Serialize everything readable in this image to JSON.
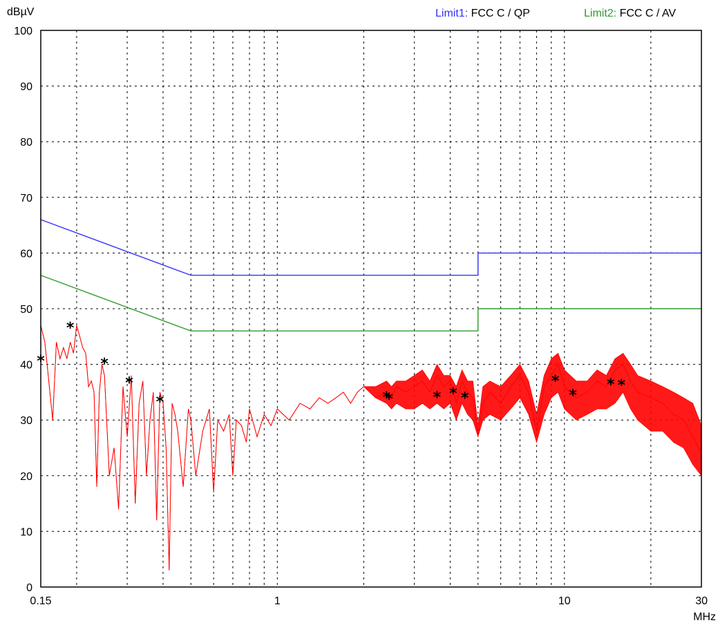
{
  "chart_data": {
    "type": "line",
    "title": "",
    "xlabel": "MHz",
    "ylabel": "dBµV",
    "x_scale": "log",
    "xlim": [
      0.15,
      30
    ],
    "ylim": [
      0,
      100
    ],
    "grid": true,
    "legend_position": "top-right",
    "x_ticks": [
      {
        "value": 0.15,
        "label": "0.15"
      },
      {
        "value": 1,
        "label": "1"
      },
      {
        "value": 10,
        "label": "10"
      },
      {
        "value": 30,
        "label": "30"
      }
    ],
    "x_gridlines": [
      0.2,
      0.3,
      0.4,
      0.5,
      0.6,
      0.7,
      0.8,
      0.9,
      1,
      2,
      3,
      4,
      5,
      6,
      7,
      8,
      9,
      10,
      20
    ],
    "y_ticks": [
      0,
      10,
      20,
      30,
      40,
      50,
      60,
      70,
      80,
      90,
      100
    ],
    "legend": [
      {
        "prefix": "Limit1: ",
        "text": "FCC C / QP",
        "color": "#3030ff"
      },
      {
        "prefix": "Limit2: ",
        "text": "FCC C / AV",
        "color": "#2e9b2e"
      }
    ],
    "series": [
      {
        "name": "Limit1: FCC C / QP",
        "color": "#3030ff",
        "x": [
          0.15,
          0.5,
          5,
          5,
          30
        ],
        "y": [
          66,
          56,
          56,
          60,
          60
        ]
      },
      {
        "name": "Limit2: FCC C / AV",
        "color": "#2e9b2e",
        "x": [
          0.15,
          0.5,
          5,
          5,
          30
        ],
        "y": [
          56,
          46,
          46,
          50,
          50
        ]
      },
      {
        "name": "",
        "color": "#ff0000",
        "x": [
          0.15,
          0.155,
          0.16,
          0.165,
          0.17,
          0.175,
          0.18,
          0.185,
          0.19,
          0.195,
          0.2,
          0.205,
          0.21,
          0.215,
          0.22,
          0.225,
          0.23,
          0.235,
          0.24,
          0.245,
          0.25,
          0.26,
          0.27,
          0.28,
          0.29,
          0.3,
          0.31,
          0.32,
          0.33,
          0.34,
          0.35,
          0.36,
          0.37,
          0.38,
          0.39,
          0.4,
          0.41,
          0.42,
          0.43,
          0.44,
          0.45,
          0.47,
          0.49,
          0.5,
          0.52,
          0.55,
          0.58,
          0.6,
          0.62,
          0.65,
          0.68,
          0.7,
          0.72,
          0.75,
          0.78,
          0.8,
          0.85,
          0.9,
          0.95,
          1,
          1.1,
          1.2,
          1.3,
          1.4,
          1.5,
          1.6,
          1.7,
          1.8,
          1.9,
          2,
          2.2,
          2.4,
          2.5,
          2.6,
          2.8,
          3,
          3.2,
          3.4,
          3.6,
          3.8,
          4,
          4.2,
          4.4,
          4.6,
          4.8,
          5,
          5.2,
          5.5,
          6,
          6.5,
          7,
          7.5,
          8,
          8.5,
          9,
          9.5,
          10,
          11,
          12,
          13,
          14,
          15,
          16,
          17,
          18,
          20,
          22,
          24,
          26,
          28,
          30
        ],
        "y": [
          47,
          44,
          37,
          30,
          44,
          41,
          43,
          41,
          44,
          42,
          47,
          45,
          43,
          42,
          36,
          37,
          35,
          18,
          35,
          40,
          38,
          20,
          25,
          14,
          36,
          27,
          38,
          15,
          33,
          37,
          20,
          30,
          35,
          12,
          35,
          33,
          25,
          3,
          33,
          31,
          28,
          18,
          32,
          30,
          20,
          28,
          32,
          17,
          30,
          28,
          31,
          20,
          30,
          29,
          26,
          32,
          27,
          31,
          29,
          32,
          30,
          33,
          32,
          34,
          33,
          34,
          35,
          33,
          35,
          36,
          34,
          35,
          34,
          36,
          35,
          36,
          37,
          35,
          38,
          36,
          37,
          33,
          37,
          35,
          34,
          27,
          33,
          35,
          33,
          36,
          38,
          35,
          28,
          36,
          38,
          40,
          36,
          34,
          35,
          37,
          36,
          39,
          40,
          37,
          35,
          34,
          33,
          31,
          30,
          27,
          24
        ],
        "y_min": [
          47,
          44,
          37,
          30,
          44,
          41,
          43,
          41,
          44,
          42,
          47,
          45,
          43,
          42,
          36,
          37,
          35,
          18,
          35,
          40,
          38,
          20,
          25,
          14,
          36,
          27,
          38,
          15,
          33,
          37,
          20,
          30,
          35,
          12,
          35,
          33,
          25,
          3,
          33,
          31,
          28,
          18,
          32,
          30,
          20,
          28,
          32,
          17,
          30,
          28,
          31,
          20,
          30,
          29,
          26,
          32,
          27,
          31,
          29,
          32,
          30,
          33,
          32,
          34,
          33,
          34,
          35,
          33,
          35,
          36,
          34,
          33,
          32,
          33,
          32,
          32,
          33,
          32,
          33,
          32,
          33,
          30,
          33,
          31,
          30,
          27,
          30,
          31,
          30,
          32,
          34,
          31,
          26,
          31,
          34,
          35,
          32,
          30,
          31,
          32,
          32,
          33,
          35,
          32,
          30,
          28,
          28,
          26,
          25,
          22,
          20
        ],
        "y_max": [
          47,
          44,
          37,
          30,
          44,
          41,
          43,
          41,
          44,
          42,
          47,
          45,
          43,
          42,
          36,
          37,
          35,
          18,
          35,
          40,
          38,
          20,
          25,
          14,
          36,
          27,
          38,
          15,
          33,
          37,
          20,
          30,
          35,
          12,
          35,
          33,
          25,
          3,
          33,
          31,
          28,
          18,
          32,
          30,
          20,
          28,
          32,
          17,
          30,
          28,
          31,
          20,
          30,
          29,
          26,
          32,
          27,
          31,
          29,
          32,
          30,
          33,
          32,
          34,
          33,
          34,
          35,
          33,
          35,
          36,
          36,
          37,
          36,
          37,
          37,
          38,
          39,
          37,
          40,
          38,
          38,
          36,
          39,
          37,
          37,
          29,
          36,
          37,
          36,
          38,
          40,
          37,
          31,
          38,
          41,
          42,
          39,
          37,
          37,
          39,
          38,
          41,
          42,
          40,
          38,
          37,
          36,
          35,
          34,
          33,
          29
        ]
      }
    ],
    "markers": {
      "symbol": "*",
      "points": [
        {
          "x": 0.15,
          "y": 40.8
        },
        {
          "x": 0.19,
          "y": 46.8
        },
        {
          "x": 0.25,
          "y": 40.3
        },
        {
          "x": 0.305,
          "y": 36.9
        },
        {
          "x": 0.39,
          "y": 33.5
        },
        {
          "x": 2.4,
          "y": 34.3
        },
        {
          "x": 2.45,
          "y": 34.0
        },
        {
          "x": 3.6,
          "y": 34.3
        },
        {
          "x": 4.1,
          "y": 35.0
        },
        {
          "x": 4.5,
          "y": 34.2
        },
        {
          "x": 9.3,
          "y": 37.2
        },
        {
          "x": 10.7,
          "y": 34.7
        },
        {
          "x": 14.5,
          "y": 36.6
        },
        {
          "x": 15.8,
          "y": 36.5
        }
      ]
    }
  }
}
